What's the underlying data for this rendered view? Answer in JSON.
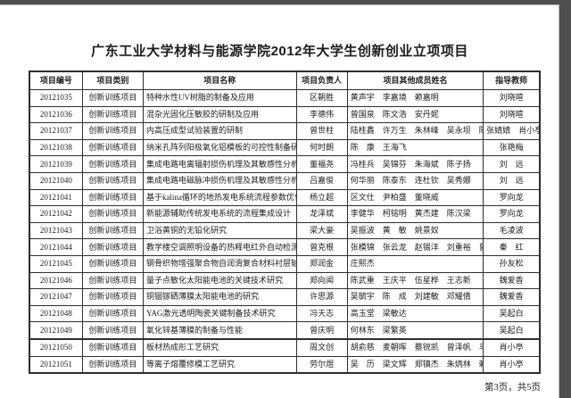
{
  "colors": {
    "frame_bg": "#4f4f4f",
    "page_bg": "#ffffff",
    "ink": "#1c1c1c",
    "line": "#2e2e2e"
  },
  "page": {
    "title": "广东工业大学材料与能源学院2012年大学生创新创业立项项目",
    "footer": "第3页，共5页"
  },
  "table": {
    "headers": [
      "项目编号",
      "项目类别",
      "项目名称",
      "项目负责人",
      "项目其他成员姓名",
      "指导教师"
    ],
    "rows": [
      {
        "id": "20121035",
        "category": "创新训练项目",
        "name": "特种水性UV树脂的制备及应用",
        "leader": "区朝胜",
        "members": "黄声宇　李嘉境　赖嘉明",
        "advisor": "刘晓暄"
      },
      {
        "id": "20121036",
        "category": "创新训练项目",
        "name": "混杂光固化压敏胶的研制及应用",
        "leader": "李德伟",
        "members": "曾国泉　陈文浩　安丹妮",
        "advisor": "刘晓暄"
      },
      {
        "id": "20121037",
        "category": "创新训练项目",
        "name": "内高压成型试验装置的研制",
        "leader": "曾世柱",
        "members": "陆桂鑫　许万生　朱林峰　吴永坝　陈志伟",
        "advisor": "张婧婧　肖小亭"
      },
      {
        "id": "20121038",
        "category": "创新训练项目",
        "name": "纳米孔阵列阳极氧化铝模板的可控性制备研究",
        "leader": "何时朗",
        "members": "陈　康　王海飞",
        "advisor": "张艳梅"
      },
      {
        "id": "20121039",
        "category": "创新训练项目",
        "name": "集成电路电离辐射损伤机理及其敏感性分析",
        "leader": "董福尧",
        "members": "冯桂兵　吴锦芬　朱海斌　陈子扬",
        "advisor": "刘　远"
      },
      {
        "id": "20121040",
        "category": "创新训练项目",
        "name": "集成电路电磁脉冲损伤机理及其敏感性分析",
        "leader": "吕嘉俊",
        "members": "何华丽　陈泰东　连杜钦　吴秀娜",
        "advisor": "刘　远"
      },
      {
        "id": "20121041",
        "category": "创新训练项目",
        "name": "基于kalina循环的地热发电系统流程参数优化",
        "leader": "杨立超",
        "members": "区文仕　尹柏盛　董晓威",
        "advisor": "罗向龙"
      },
      {
        "id": "20121042",
        "category": "创新训练项目",
        "name": "新能源辅助传统发电系统的流程集成设计",
        "leader": "龙泽斌",
        "members": "李健华　柯铭明　黄杰建　陈汉梁",
        "advisor": "罗向龙"
      },
      {
        "id": "20121043",
        "category": "创新训练项目",
        "name": "卫浴黄铜的无铅化研究",
        "leader": "梁大豪",
        "members": "吴振波　黄　敏　姚景奴",
        "advisor": "毛凌波"
      },
      {
        "id": "20121044",
        "category": "创新训练项目",
        "name": "教学楼空调照明设备的热释电红外自动检测与控制",
        "leader": "曾克根",
        "members": "张模锦　张云龙　赵锡洋　刘重裕　曾业鹏　谢艺彪",
        "advisor": "秦　红"
      },
      {
        "id": "20121045",
        "category": "创新训练项目",
        "name": "钢骨织物增强聚合物自润滑复合材料衬层轴瓦开发",
        "leader": "郑润金",
        "members": "庄熙杰",
        "advisor": "孙友松"
      },
      {
        "id": "20121046",
        "category": "创新训练项目",
        "name": "量子点敏化太阳能电池的关键技术研究",
        "leader": "郑向闻",
        "members": "陈武重　王庆平　伍星桦　王志新",
        "advisor": "魏爱香"
      },
      {
        "id": "20121047",
        "category": "创新训练项目",
        "name": "铜铟镓硒薄膜太阳能电池的研究",
        "leader": "许思源",
        "members": "吴毓宇　陈　成　刘建敏　邓耀倩",
        "advisor": "魏爱香"
      },
      {
        "id": "20121048",
        "category": "创新训练项目",
        "name": "YAG激光透明陶瓷关键制备技术研究",
        "leader": "冯天志",
        "members": "高玉堂　梁敏达",
        "advisor": "吴起白"
      },
      {
        "id": "20121049",
        "category": "创新训练项目",
        "name": "氧化锌基薄膜的制备与性能",
        "leader": "曾庆明",
        "members": "何林东　梁繁英",
        "advisor": "吴起白"
      },
      {
        "id": "20121050",
        "category": "创新训练项目",
        "name": "板材热成形工艺研究",
        "leader": "周文创",
        "members": "胡俞慈　麦朝晖　蔡锐凯　曾泽帆　马发谦",
        "advisor": "肖小亭"
      },
      {
        "id": "20121051",
        "category": "创新训练项目",
        "name": "等离子熔覆修模工艺研究",
        "leader": "劳尔煜",
        "members": "吴　历　梁文辉　郑镇杰　朱炳林　赖春凤",
        "advisor": "肖小亭"
      }
    ]
  }
}
